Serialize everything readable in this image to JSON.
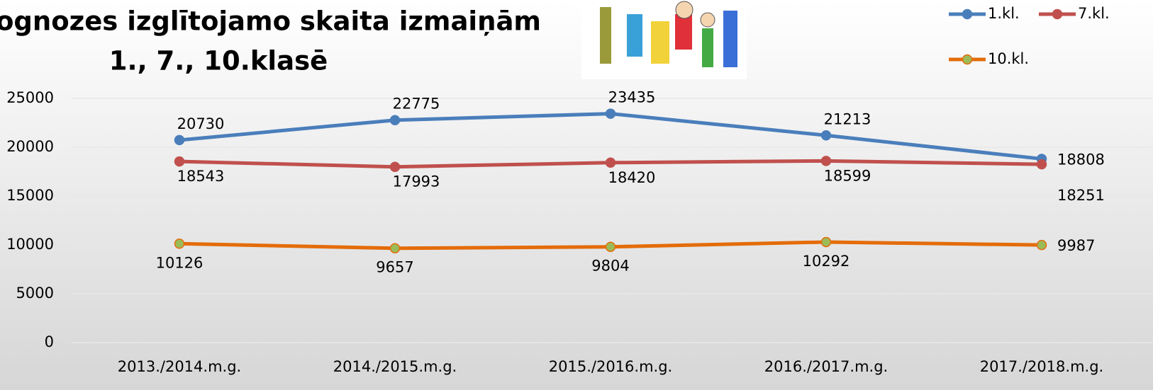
{
  "chart_data": {
    "type": "line",
    "title": [
      "ognozes izglītojamo skaita izmaiņām",
      "1., 7., 10.klasē"
    ],
    "categories": [
      "2013./2014.m.g.",
      "2014./2015.m.g.",
      "2015./2016.m.g.",
      "2016./2017.m.g.",
      "2017./2018.m.g."
    ],
    "series": [
      {
        "name": "1.kl.",
        "color": "#4a7ebb",
        "marker_color": "#4a7ebb",
        "values": [
          20730,
          22775,
          23435,
          21213,
          18808
        ]
      },
      {
        "name": "7.kl.",
        "color": "#c0504d",
        "marker_color": "#c0504d",
        "values": [
          18543,
          17993,
          18420,
          18599,
          18251
        ]
      },
      {
        "name": "10.kl.",
        "color": "#e46c0a",
        "marker_color": "#9bbb59",
        "values": [
          10126,
          9657,
          9804,
          10292,
          9987
        ]
      }
    ],
    "ylim": [
      0,
      25000
    ],
    "yticks": [
      0,
      5000,
      10000,
      15000,
      20000,
      25000
    ],
    "grid": true,
    "legend": "top-right"
  }
}
